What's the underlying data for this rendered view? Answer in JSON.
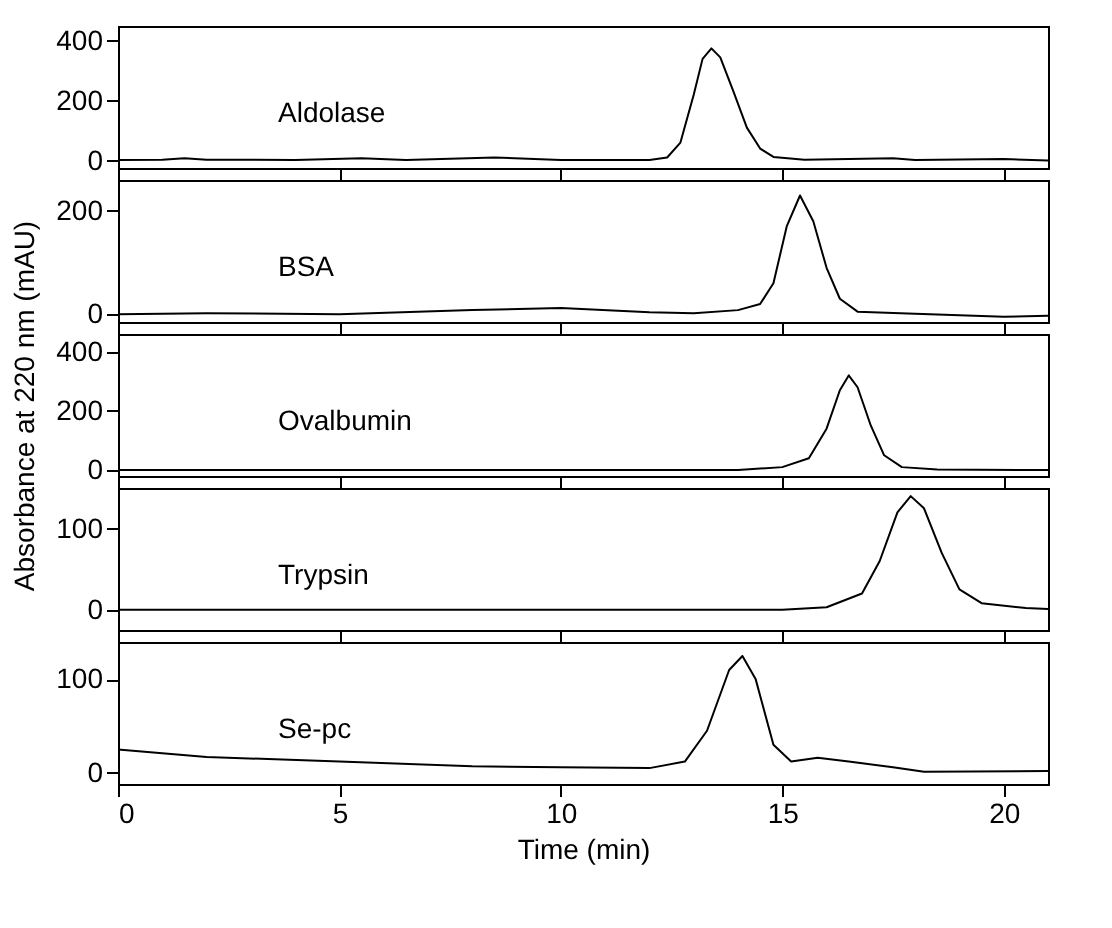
{
  "chart_data": [
    {
      "type": "line",
      "tick_labels": "y",
      "xlim": [
        0,
        21
      ],
      "xticks": [
        0,
        5,
        10,
        15,
        20
      ],
      "ylim": [
        -25,
        450
      ],
      "yticks": [
        0,
        200,
        400
      ],
      "x": [
        0,
        1,
        1.5,
        2,
        4,
        5.5,
        6.5,
        8.5,
        10,
        12,
        12.4,
        12.7,
        13,
        13.2,
        13.4,
        13.6,
        13.9,
        14.2,
        14.5,
        14.8,
        15.5,
        17.5,
        18,
        20,
        21
      ],
      "series": [
        {
          "name": "Aldolase",
          "color": "#000000",
          "values": [
            2,
            3,
            8,
            3,
            2,
            8,
            2,
            10,
            2,
            2,
            10,
            60,
            220,
            340,
            375,
            345,
            230,
            110,
            40,
            12,
            3,
            8,
            2,
            5,
            0
          ]
        }
      ]
    },
    {
      "type": "line",
      "tick_labels": "y",
      "xlim": [
        0,
        21
      ],
      "xticks": [
        0,
        5,
        10,
        15,
        20
      ],
      "ylim": [
        -15,
        260
      ],
      "yticks": [
        0,
        200
      ],
      "x": [
        0,
        2,
        5,
        8,
        10,
        12,
        13,
        14,
        14.5,
        14.8,
        15.1,
        15.4,
        15.7,
        16,
        16.3,
        16.7,
        18,
        20,
        21
      ],
      "series": [
        {
          "name": "BSA",
          "color": "#000000",
          "values": [
            0,
            2,
            0,
            8,
            12,
            4,
            2,
            8,
            20,
            60,
            170,
            230,
            180,
            90,
            30,
            5,
            1,
            -5,
            -3
          ]
        }
      ]
    },
    {
      "type": "line",
      "tick_labels": "y",
      "ylabel": "Absorbance at 220 nm (mAU)",
      "xlim": [
        0,
        21
      ],
      "xticks": [
        0,
        5,
        10,
        15,
        20
      ],
      "ylim": [
        -20,
        460
      ],
      "yticks": [
        0,
        200,
        400
      ],
      "x": [
        0,
        14,
        15,
        15.6,
        16,
        16.3,
        16.5,
        16.7,
        17,
        17.3,
        17.7,
        18.5,
        21
      ],
      "series": [
        {
          "name": "Ovalbumin",
          "color": "#000000",
          "values": [
            0,
            0,
            10,
            40,
            140,
            270,
            320,
            280,
            150,
            50,
            10,
            2,
            0
          ]
        }
      ]
    },
    {
      "type": "line",
      "tick_labels": "y",
      "xlim": [
        0,
        21
      ],
      "xticks": [
        0,
        5,
        10,
        15,
        20
      ],
      "ylim": [
        -25,
        150
      ],
      "yticks": [
        0,
        100
      ],
      "x": [
        0,
        15,
        16,
        16.8,
        17.2,
        17.6,
        17.9,
        18.2,
        18.6,
        19,
        19.5,
        20.5,
        21
      ],
      "series": [
        {
          "name": "Trypsin",
          "color": "#000000",
          "values": [
            0,
            0,
            3,
            20,
            60,
            120,
            140,
            125,
            70,
            25,
            8,
            2,
            1
          ]
        }
      ]
    },
    {
      "type": "line",
      "xlabel": "Time (min)",
      "xlim": [
        0,
        21
      ],
      "xticks": [
        0,
        5,
        10,
        15,
        20
      ],
      "ylim": [
        -12,
        140
      ],
      "yticks": [
        0,
        100
      ],
      "x": [
        0,
        2,
        5,
        8,
        10,
        12,
        12.8,
        13.3,
        13.8,
        14.1,
        14.4,
        14.8,
        15.2,
        15.8,
        16.5,
        17.5,
        18.2,
        21
      ],
      "series": [
        {
          "name": "Se-pc",
          "color": "#000000",
          "values": [
            25,
            17,
            12,
            7,
            6,
            5,
            12,
            45,
            110,
            125,
            100,
            30,
            12,
            16,
            12,
            6,
            1,
            2
          ]
        }
      ]
    }
  ]
}
